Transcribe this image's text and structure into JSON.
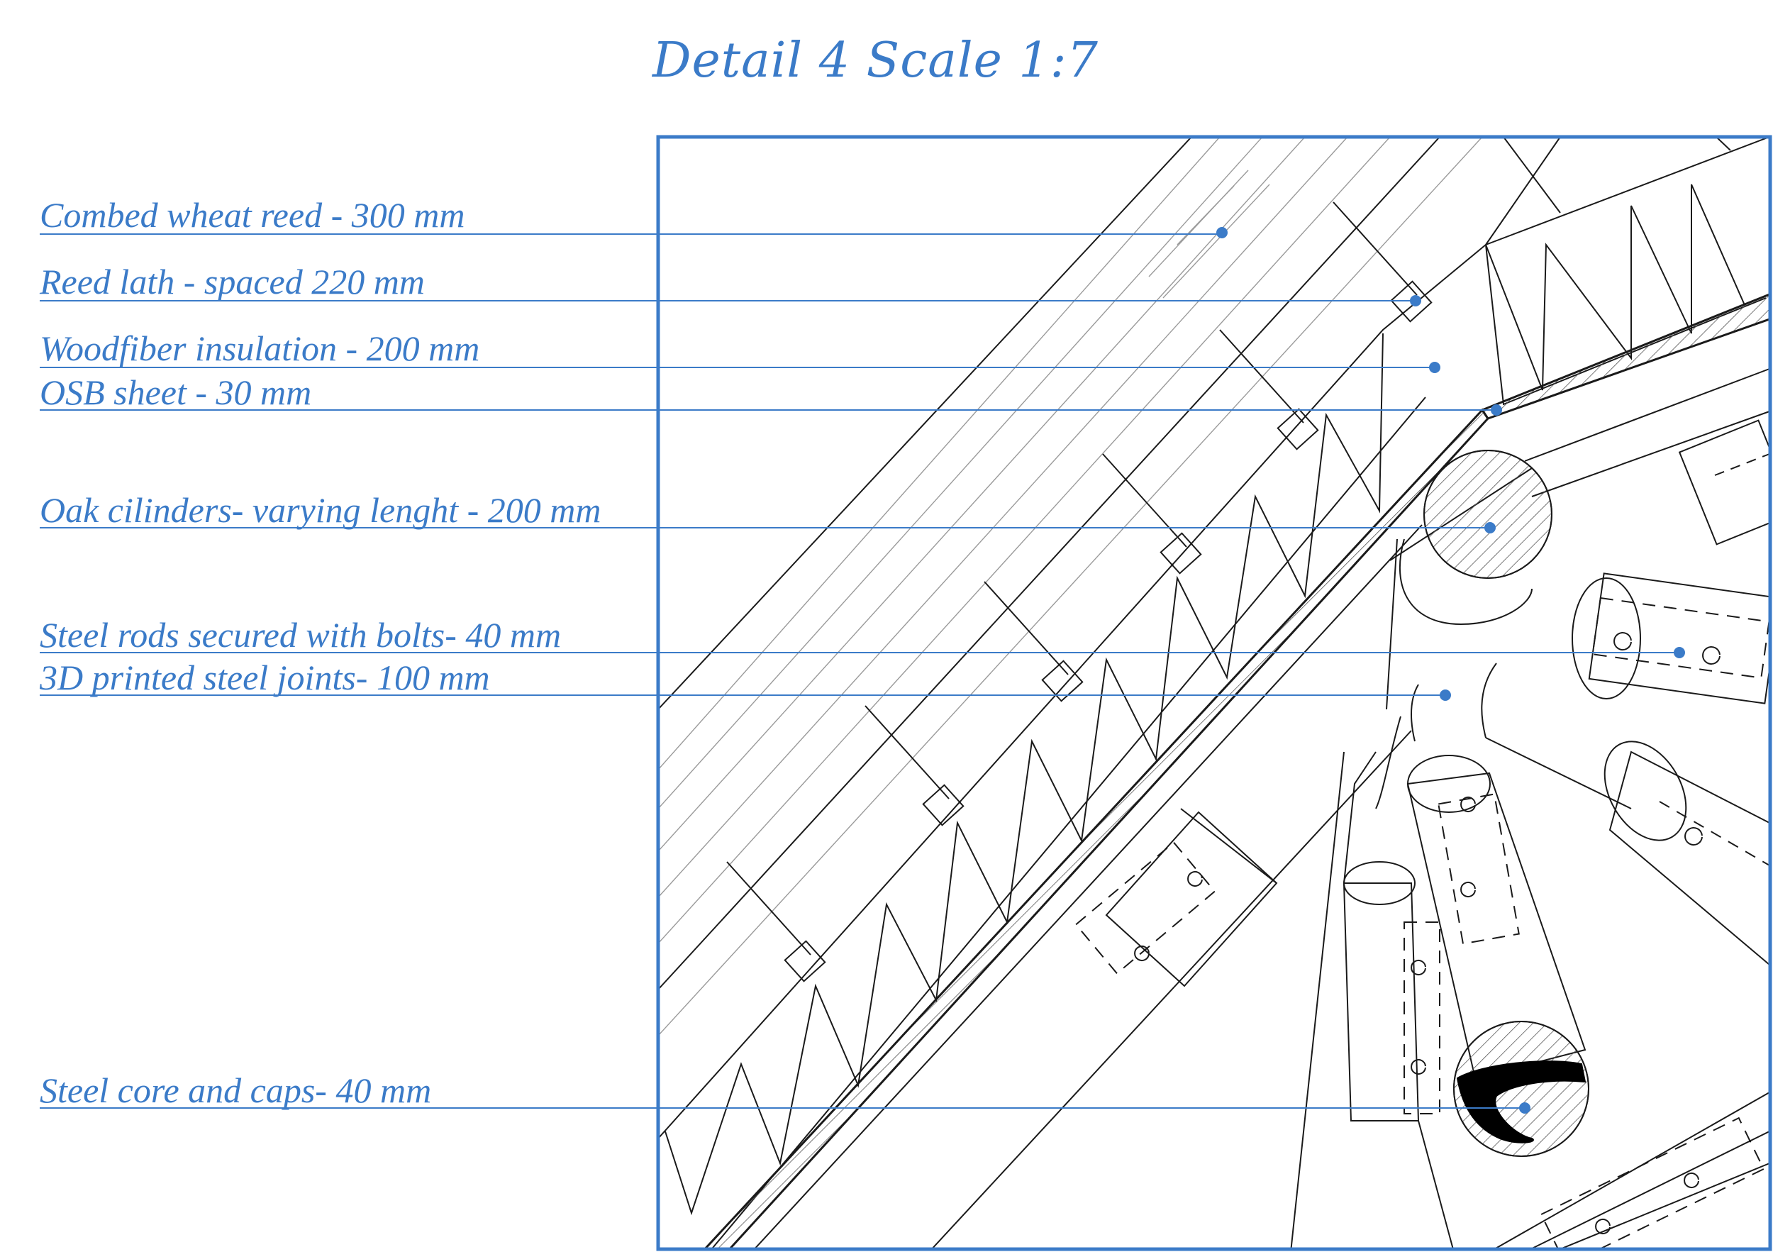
{
  "title": "Detail 4 Scale 1:7",
  "colors": {
    "accent": "#3b7bc8",
    "ink": "#1a1a1a",
    "hatch": "#555555",
    "grey": "#9a9a9a"
  },
  "labels": [
    {
      "id": "reed",
      "text": "Combed wheat reed - 300 mm"
    },
    {
      "id": "lath",
      "text": "Reed lath - spaced 220 mm"
    },
    {
      "id": "insulation",
      "text": "Woodfiber insulation - 200 mm"
    },
    {
      "id": "osb",
      "text": "OSB sheet - 30 mm"
    },
    {
      "id": "oak",
      "text": "Oak cilinders- varying lenght - 200 mm"
    },
    {
      "id": "rods",
      "text": "Steel rods secured with bolts- 40 mm"
    },
    {
      "id": "joints",
      "text": "3D printed steel joints- 100 mm"
    },
    {
      "id": "core",
      "text": "Steel core and caps- 40 mm"
    }
  ]
}
